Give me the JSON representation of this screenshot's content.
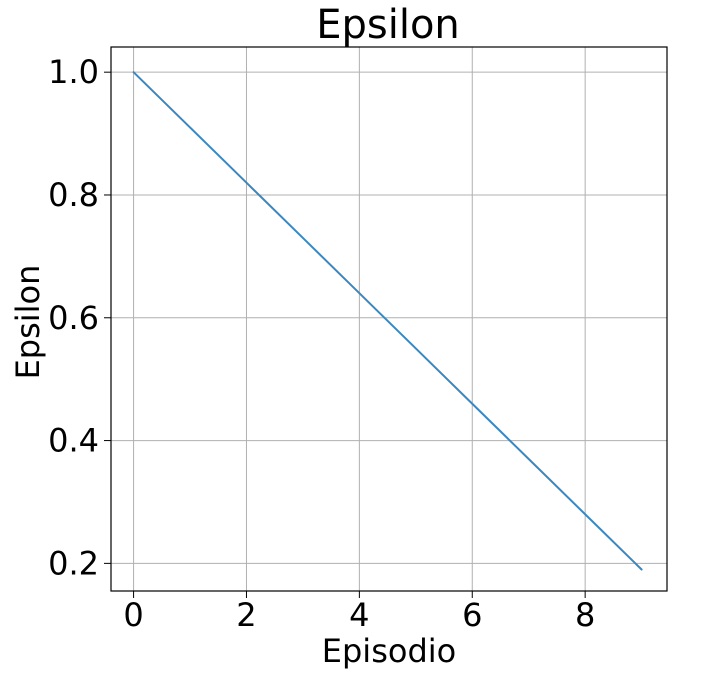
{
  "chart_data": {
    "type": "line",
    "title": "Epsilon",
    "xlabel": "Episodio",
    "ylabel": "Epsilon",
    "xlim": [
      -0.4,
      9.45
    ],
    "ylim": [
      0.155,
      1.041
    ],
    "xticks": [
      0,
      2,
      4,
      6,
      8
    ],
    "xtick_labels": [
      "0",
      "2",
      "4",
      "6",
      "8"
    ],
    "yticks": [
      0.2,
      0.4,
      0.6,
      0.8,
      1.0
    ],
    "ytick_labels": [
      "0.2",
      "0.4",
      "0.6",
      "0.8",
      "1.0"
    ],
    "grid": true,
    "series": [
      {
        "color": "#3b87bf",
        "x": [
          0,
          1,
          2,
          3,
          4,
          5,
          6,
          7,
          8,
          9
        ],
        "y": [
          1.0,
          0.91,
          0.82,
          0.73,
          0.64,
          0.55,
          0.46,
          0.37,
          0.28,
          0.19
        ]
      }
    ]
  }
}
